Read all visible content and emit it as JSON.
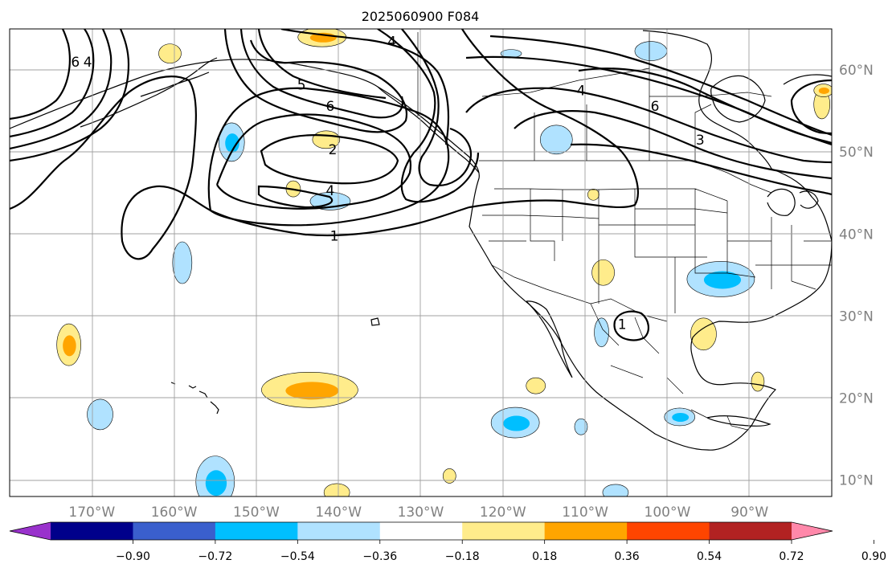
{
  "title": "2025060900 F084",
  "map": {
    "lon_range": [
      -180,
      -80
    ],
    "lat_range": [
      8,
      65
    ],
    "lon_labels": [
      {
        "lon": -170,
        "label": "170°W"
      },
      {
        "lon": -160,
        "label": "160°W"
      },
      {
        "lon": -150,
        "label": "150°W"
      },
      {
        "lon": -140,
        "label": "140°W"
      },
      {
        "lon": -130,
        "label": "130°W"
      },
      {
        "lon": -120,
        "label": "120°W"
      },
      {
        "lon": -110,
        "label": "110°W"
      },
      {
        "lon": -100,
        "label": "100°W"
      },
      {
        "lon": -90,
        "label": "90°W"
      }
    ],
    "lat_labels": [
      {
        "lat": 60,
        "label": "60°N"
      },
      {
        "lat": 50,
        "label": "50°N"
      },
      {
        "lat": 40,
        "label": "40°N"
      },
      {
        "lat": 30,
        "label": "30°N"
      },
      {
        "lat": 20,
        "label": "20°N"
      },
      {
        "lat": 10,
        "label": "10°N"
      }
    ],
    "contour_labels": [
      {
        "text": "1",
        "lon": -140.5,
        "lat": 39.8
      },
      {
        "text": "2",
        "lon": -140.7,
        "lat": 50.3
      },
      {
        "text": "4",
        "lon": -141.0,
        "lat": 45.3
      },
      {
        "text": "4",
        "lon": -133.5,
        "lat": 63.5
      },
      {
        "text": "4",
        "lon": -110.5,
        "lat": 57.5
      },
      {
        "text": "6",
        "lon": -141.0,
        "lat": 55.6
      },
      {
        "text": "6",
        "lon": -101.5,
        "lat": 55.6
      },
      {
        "text": "5",
        "lon": -144.5,
        "lat": 58.2
      },
      {
        "text": "3",
        "lon": -96.0,
        "lat": 51.5
      },
      {
        "text": "6",
        "lon": -172.0,
        "lat": 61.0
      },
      {
        "text": "4",
        "lon": -170.5,
        "lat": 61.0
      },
      {
        "text": "1",
        "lon": -105.5,
        "lat": 29.0
      }
    ]
  },
  "colorbar": {
    "ticks": [
      "−0.90",
      "−0.72",
      "−0.54",
      "−0.36",
      "−0.18",
      "0.18",
      "0.36",
      "0.54",
      "0.72",
      "0.90"
    ],
    "colors": [
      "#9932cc",
      "#00008b",
      "#3a5fcd",
      "#00bfff",
      "#b0e2ff",
      "#ffffff",
      "#ffec8b",
      "#ffa500",
      "#ff4500",
      "#b22222",
      "#ff88aa"
    ]
  },
  "anomaly_patches": [
    {
      "lon": -143.5,
      "lat": 21.0,
      "rx": 60,
      "ry": 22,
      "sign": 1,
      "strength": 2
    },
    {
      "lon": -172.8,
      "lat": 26.5,
      "rx": 15,
      "ry": 26,
      "sign": 1,
      "strength": 2
    },
    {
      "lon": -142.0,
      "lat": 64.0,
      "rx": 30,
      "ry": 12,
      "sign": 1,
      "strength": 2
    },
    {
      "lon": -160.5,
      "lat": 62.0,
      "rx": 14,
      "ry": 12,
      "sign": 1,
      "strength": 1
    },
    {
      "lon": -153.0,
      "lat": 51.2,
      "rx": 16,
      "ry": 24,
      "sign": -1,
      "strength": 2
    },
    {
      "lon": -141.0,
      "lat": 44.0,
      "rx": 25,
      "ry": 11,
      "sign": -1,
      "strength": 1
    },
    {
      "lon": -159.0,
      "lat": 36.5,
      "rx": 12,
      "ry": 26,
      "sign": -1,
      "strength": 1
    },
    {
      "lon": -169.0,
      "lat": 18.0,
      "rx": 16,
      "ry": 19,
      "sign": -1,
      "strength": 1
    },
    {
      "lon": -155.0,
      "lat": 9.8,
      "rx": 24,
      "ry": 32,
      "sign": -1,
      "strength": 2
    },
    {
      "lon": -140.2,
      "lat": 8.5,
      "rx": 16,
      "ry": 11,
      "sign": 1,
      "strength": 1
    },
    {
      "lon": -118.5,
      "lat": 17.0,
      "rx": 30,
      "ry": 19,
      "sign": -1,
      "strength": 2
    },
    {
      "lon": -113.5,
      "lat": 51.5,
      "rx": 20,
      "ry": 18,
      "sign": -1,
      "strength": 1
    },
    {
      "lon": -119.0,
      "lat": 62.0,
      "rx": 13,
      "ry": 5,
      "sign": -1,
      "strength": 1
    },
    {
      "lon": -102.0,
      "lat": 62.3,
      "rx": 20,
      "ry": 12,
      "sign": -1,
      "strength": 1
    },
    {
      "lon": -93.5,
      "lat": 34.5,
      "rx": 42,
      "ry": 22,
      "sign": -1,
      "strength": 2
    },
    {
      "lon": -107.8,
      "lat": 35.3,
      "rx": 14,
      "ry": 16,
      "sign": 1,
      "strength": 1
    },
    {
      "lon": -95.6,
      "lat": 27.8,
      "rx": 16,
      "ry": 20,
      "sign": 1,
      "strength": 1
    },
    {
      "lon": -108.0,
      "lat": 28.0,
      "rx": 9,
      "ry": 18,
      "sign": -1,
      "strength": 1
    },
    {
      "lon": -98.5,
      "lat": 17.7,
      "rx": 19,
      "ry": 11,
      "sign": -1,
      "strength": 2
    },
    {
      "lon": -145.5,
      "lat": 45.5,
      "rx": 9,
      "ry": 10,
      "sign": 1,
      "strength": 1
    },
    {
      "lon": -141.5,
      "lat": 51.5,
      "rx": 17,
      "ry": 11,
      "sign": 1,
      "strength": 1
    },
    {
      "lon": -116.0,
      "lat": 21.5,
      "rx": 12,
      "ry": 10,
      "sign": 1,
      "strength": 1
    },
    {
      "lon": -89.0,
      "lat": 22.0,
      "rx": 8,
      "ry": 12,
      "sign": 1,
      "strength": 1
    },
    {
      "lon": -110.5,
      "lat": 16.5,
      "rx": 8,
      "ry": 10,
      "sign": -1,
      "strength": 1
    },
    {
      "lon": -126.5,
      "lat": 10.5,
      "rx": 8,
      "ry": 9,
      "sign": 1,
      "strength": 1
    },
    {
      "lon": -106.3,
      "lat": 8.5,
      "rx": 16,
      "ry": 10,
      "sign": -1,
      "strength": 1
    },
    {
      "lon": -109.0,
      "lat": 44.8,
      "rx": 7,
      "ry": 7,
      "sign": 1,
      "strength": 1
    },
    {
      "lon": -81.2,
      "lat": 55.8,
      "rx": 10,
      "ry": 18,
      "sign": 1,
      "strength": 1
    },
    {
      "lon": -81.0,
      "lat": 57.5,
      "rx": 12,
      "ry": 8,
      "sign": 1,
      "strength": 2
    }
  ]
}
